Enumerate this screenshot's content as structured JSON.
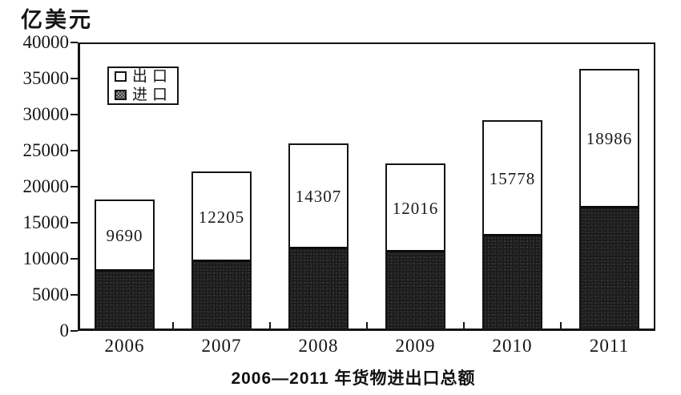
{
  "unit_label": "亿美元",
  "caption": "2006—2011 年货物进出口总额",
  "legend": {
    "items": [
      {
        "label": "出口",
        "swatch": "white"
      },
      {
        "label": "进口",
        "swatch": "dark-hatch"
      }
    ]
  },
  "y_axis": {
    "tick_labels": [
      "40000",
      "35000",
      "30000",
      "25000",
      "20000",
      "15000",
      "10000",
      "5000",
      "0"
    ]
  },
  "chart_data": {
    "type": "bar",
    "stacked": true,
    "title": "2006—2011 年货物进出口总额",
    "ylabel": "亿美元",
    "xlabel": "",
    "ylim": [
      0,
      40000
    ],
    "ytick_step": 5000,
    "grid": false,
    "legend_position": "inside-top-left",
    "categories": [
      "2006",
      "2007",
      "2008",
      "2009",
      "2010",
      "2011"
    ],
    "series": [
      {
        "name": "出口",
        "role": "export-top-segment",
        "fill": "white",
        "values": [
          9690,
          12205,
          14307,
          12016,
          15778,
          18986
        ],
        "value_labels_visible": true
      },
      {
        "name": "进口",
        "role": "import-bottom-segment",
        "fill": "dark-stipple",
        "values": [
          8200,
          9600,
          11300,
          10900,
          13100,
          17000
        ],
        "estimated_from_pixels": true,
        "value_labels_visible": false
      }
    ]
  },
  "colors": {
    "ink": "#141414",
    "paper": "#ffffff",
    "dark_fill": "#1c1c1c"
  }
}
